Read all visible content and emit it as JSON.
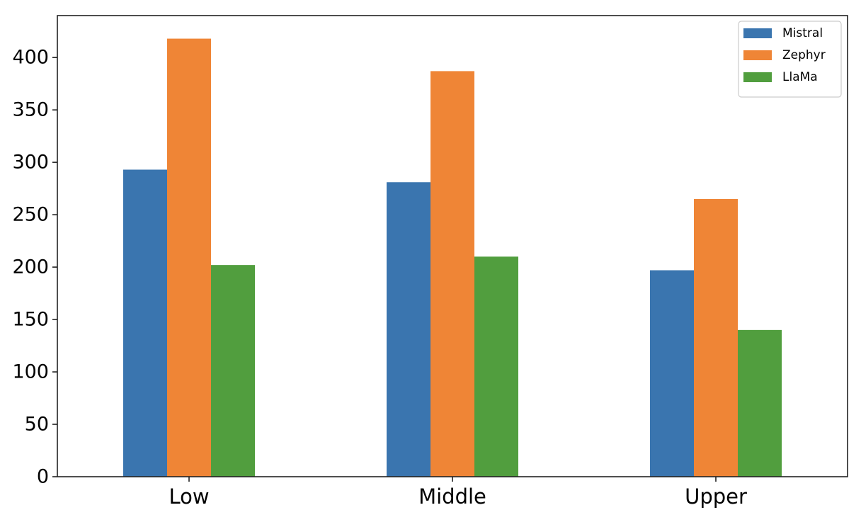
{
  "chart_data": {
    "type": "bar",
    "title": "",
    "xlabel": "",
    "ylabel": "",
    "categories": [
      "Low",
      "Middle",
      "Upper"
    ],
    "series": [
      {
        "name": "Mistral",
        "color": "#3a75af",
        "values": [
          293,
          281,
          197
        ]
      },
      {
        "name": "Zephyr",
        "color": "#ef8536",
        "values": [
          418,
          387,
          265
        ]
      },
      {
        "name": "LlaMa",
        "color": "#519e3e",
        "values": [
          202,
          210,
          140
        ]
      }
    ],
    "ylim": [
      0,
      440
    ],
    "yticks": [
      "0",
      "50",
      "100",
      "150",
      "200",
      "250",
      "300",
      "350",
      "400"
    ],
    "grid": false,
    "legend_position": "top-right"
  }
}
